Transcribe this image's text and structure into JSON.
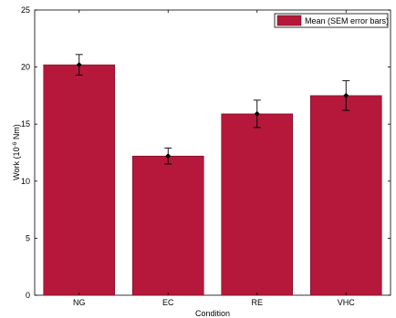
{
  "chart_data": {
    "type": "bar",
    "categories": [
      "NG",
      "EC",
      "RE",
      "VHC"
    ],
    "values": [
      20.2,
      12.2,
      15.9,
      17.5
    ],
    "error_bars": [
      0.9,
      0.7,
      1.2,
      1.3
    ],
    "xlabel": "Condition",
    "ylabel_main": "Work (10",
    "ylabel_exp": "-6",
    "ylabel_unit": " Nm)",
    "ylim": [
      0,
      25
    ],
    "yticks": [
      "0",
      "5",
      "10",
      "15",
      "20",
      "25"
    ],
    "ytick_values": [
      0,
      5,
      10,
      15,
      20,
      25
    ],
    "legend": {
      "label": "Mean (SEM error bars)",
      "placement": "top-right"
    },
    "grid": false,
    "colors": {
      "bar": "#b5183a",
      "bar_edge": "#6e0f24",
      "error": "#000000"
    }
  }
}
